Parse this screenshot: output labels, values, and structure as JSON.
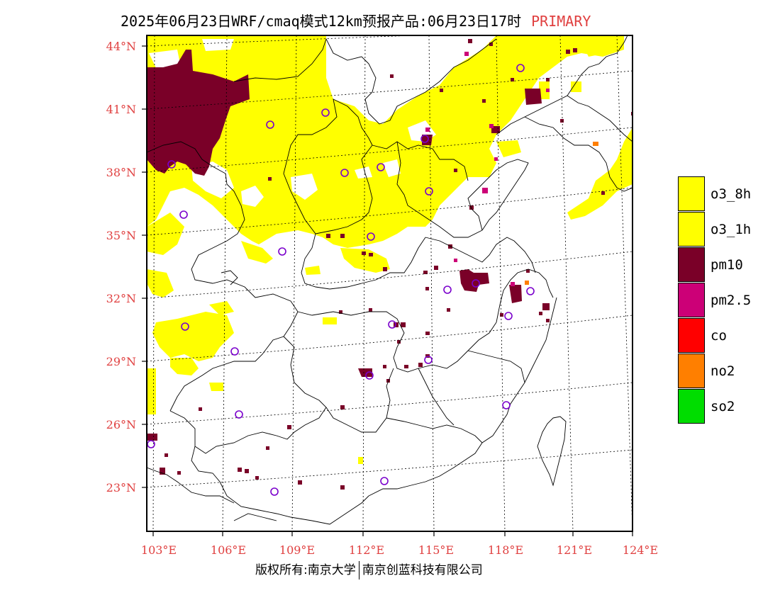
{
  "title": {
    "main": "2025年06月23日WRF/cmaq模式12km预报产品:06月23日17时",
    "tag": "PRIMARY"
  },
  "map": {
    "lat_labels": [
      "44°N",
      "41°N",
      "38°N",
      "35°N",
      "32°N",
      "29°N",
      "26°N",
      "23°N"
    ],
    "lon_labels": [
      "103°E",
      "106°E",
      "109°E",
      "112°E",
      "115°E",
      "118°E",
      "121°E",
      "124°E"
    ],
    "label_color": "#e04040"
  },
  "legend": {
    "items": [
      {
        "label": "o3_8h",
        "color": "#ffff00"
      },
      {
        "label": "o3_1h",
        "color": "#ffff00"
      },
      {
        "label": "pm10",
        "color": "#7a0028"
      },
      {
        "label": "pm2.5",
        "color": "#cc0077"
      },
      {
        "label": "co",
        "color": "#ff0000"
      },
      {
        "label": "no2",
        "color": "#ff7f00"
      },
      {
        "label": "so2",
        "color": "#00dd00"
      }
    ]
  },
  "footer": {
    "left": "版权所有:南京大学",
    "right": "南京创蓝科技有限公司"
  }
}
